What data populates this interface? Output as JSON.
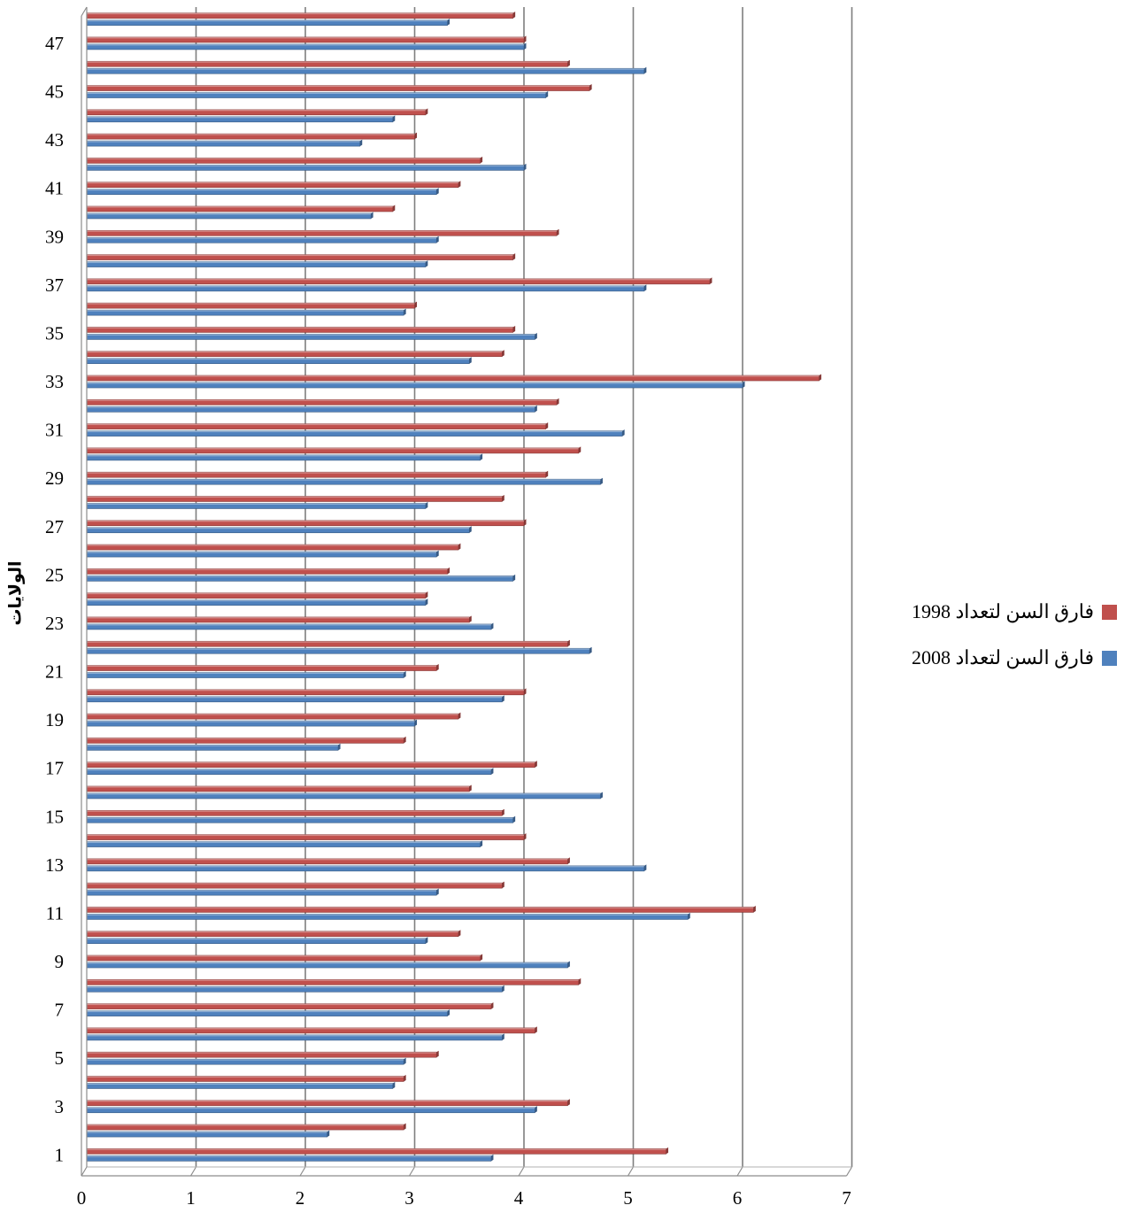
{
  "chart_data": {
    "type": "bar",
    "orientation": "horizontal",
    "ylabel": "الولايات",
    "xlabel": "",
    "xlim": [
      0,
      7
    ],
    "x_ticks": [
      0,
      1,
      2,
      3,
      4,
      5,
      6,
      7
    ],
    "categories": [
      "1",
      "2",
      "3",
      "4",
      "5",
      "6",
      "7",
      "8",
      "9",
      "10",
      "11",
      "12",
      "13",
      "14",
      "15",
      "16",
      "17",
      "18",
      "19",
      "20",
      "21",
      "22",
      "23",
      "24",
      "25",
      "26",
      "27",
      "28",
      "29",
      "30",
      "31",
      "32",
      "33",
      "34",
      "35",
      "36",
      "37",
      "38",
      "39",
      "40",
      "41",
      "42",
      "43",
      "44",
      "45",
      "46",
      "47",
      "48"
    ],
    "category_tick_labels": [
      "1",
      "3",
      "5",
      "7",
      "9",
      "11",
      "13",
      "15",
      "17",
      "19",
      "21",
      "23",
      "25",
      "27",
      "29",
      "31",
      "33",
      "35",
      "37",
      "39",
      "41",
      "43",
      "45",
      "47"
    ],
    "grid": "vertical",
    "legend_position": "right",
    "series": [
      {
        "name": "فارق السن لتعداد 1998",
        "color": "#c0504d",
        "values": [
          5.3,
          2.9,
          4.4,
          2.9,
          3.2,
          4.1,
          3.7,
          4.5,
          3.6,
          3.4,
          6.1,
          3.8,
          4.4,
          4.0,
          3.8,
          3.5,
          4.1,
          2.9,
          3.4,
          4.0,
          3.2,
          4.4,
          3.5,
          3.1,
          3.3,
          3.4,
          4.0,
          3.8,
          4.2,
          4.5,
          4.2,
          4.3,
          6.7,
          3.8,
          3.9,
          3.0,
          5.7,
          3.9,
          4.3,
          2.8,
          3.4,
          3.6,
          3.0,
          3.1,
          4.6,
          4.4,
          4.0,
          3.9
        ]
      },
      {
        "name": "فارق السن لتعداد 2008",
        "color": "#4f81bd",
        "values": [
          3.7,
          2.2,
          4.1,
          2.8,
          2.9,
          3.8,
          3.3,
          3.8,
          4.4,
          3.1,
          5.5,
          3.2,
          5.1,
          3.6,
          3.9,
          4.7,
          3.7,
          2.3,
          3.0,
          3.8,
          2.9,
          4.6,
          3.7,
          3.1,
          3.9,
          3.2,
          3.5,
          3.1,
          4.7,
          3.6,
          4.9,
          4.1,
          6.0,
          3.5,
          4.1,
          2.9,
          5.1,
          3.1,
          3.2,
          2.6,
          3.2,
          4.0,
          2.5,
          2.8,
          4.2,
          5.1,
          4.0,
          3.3
        ]
      }
    ]
  }
}
